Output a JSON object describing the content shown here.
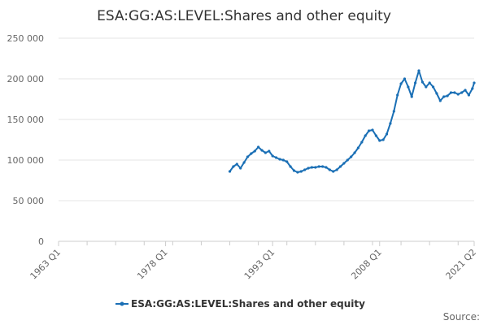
{
  "chart_data": {
    "type": "line",
    "title": "ESA:GG:AS:LEVEL:Shares and other equity",
    "xlabel": "",
    "ylabel": "",
    "ylim": [
      0,
      250000
    ],
    "yticks": [
      0,
      50000,
      100000,
      150000,
      200000,
      250000
    ],
    "ytick_labels": [
      "0",
      "50 000",
      "100 000",
      "150 000",
      "200 000",
      "250 000"
    ],
    "xtick_labels": [
      "1963 Q1",
      "1978 Q1",
      "1993 Q1",
      "2008 Q1",
      "2021 Q2"
    ],
    "grid": true,
    "legend_position": "bottom",
    "series": [
      {
        "name": "ESA:GG:AS:LEVEL:Shares and other equity",
        "color": "#1a6fb5",
        "points": [
          [
            "1987 Q1",
            86000
          ],
          [
            "1987 Q3",
            92000
          ],
          [
            "1988 Q1",
            95000
          ],
          [
            "1988 Q3",
            90000
          ],
          [
            "1989 Q1",
            97000
          ],
          [
            "1989 Q3",
            104000
          ],
          [
            "1990 Q1",
            108000
          ],
          [
            "1990 Q3",
            111000
          ],
          [
            "1991 Q1",
            116000
          ],
          [
            "1991 Q3",
            112000
          ],
          [
            "1992 Q1",
            109000
          ],
          [
            "1992 Q3",
            111000
          ],
          [
            "1993 Q1",
            105000
          ],
          [
            "1993 Q3",
            103000
          ],
          [
            "1994 Q1",
            101000
          ],
          [
            "1994 Q3",
            100000
          ],
          [
            "1995 Q1",
            98000
          ],
          [
            "1995 Q3",
            92000
          ],
          [
            "1996 Q1",
            87000
          ],
          [
            "1996 Q3",
            85000
          ],
          [
            "1997 Q1",
            86000
          ],
          [
            "1997 Q3",
            88000
          ],
          [
            "1998 Q1",
            90000
          ],
          [
            "1998 Q3",
            91000
          ],
          [
            "1999 Q1",
            91000
          ],
          [
            "1999 Q3",
            92000
          ],
          [
            "2000 Q1",
            92000
          ],
          [
            "2000 Q3",
            91000
          ],
          [
            "2001 Q1",
            88000
          ],
          [
            "2001 Q3",
            86000
          ],
          [
            "2002 Q1",
            88000
          ],
          [
            "2002 Q3",
            92000
          ],
          [
            "2003 Q1",
            96000
          ],
          [
            "2003 Q3",
            100000
          ],
          [
            "2004 Q1",
            104000
          ],
          [
            "2004 Q3",
            109000
          ],
          [
            "2005 Q1",
            115000
          ],
          [
            "2005 Q3",
            122000
          ],
          [
            "2006 Q1",
            130000
          ],
          [
            "2006 Q3",
            136000
          ],
          [
            "2007 Q1",
            137000
          ],
          [
            "2007 Q3",
            130000
          ],
          [
            "2008 Q1",
            124000
          ],
          [
            "2008 Q3",
            125000
          ],
          [
            "2009 Q1",
            132000
          ],
          [
            "2009 Q3",
            145000
          ],
          [
            "2010 Q1",
            160000
          ],
          [
            "2010 Q3",
            180000
          ],
          [
            "2011 Q1",
            194000
          ],
          [
            "2011 Q3",
            200000
          ],
          [
            "2012 Q1",
            190000
          ],
          [
            "2012 Q3",
            178000
          ],
          [
            "2013 Q1",
            195000
          ],
          [
            "2013 Q3",
            210000
          ],
          [
            "2014 Q1",
            196000
          ],
          [
            "2014 Q3",
            190000
          ],
          [
            "2015 Q1",
            195000
          ],
          [
            "2015 Q3",
            190000
          ],
          [
            "2016 Q1",
            182000
          ],
          [
            "2016 Q3",
            173000
          ],
          [
            "2017 Q1",
            178000
          ],
          [
            "2017 Q3",
            179000
          ],
          [
            "2018 Q1",
            183000
          ],
          [
            "2018 Q3",
            183000
          ],
          [
            "2019 Q1",
            181000
          ],
          [
            "2019 Q3",
            183000
          ],
          [
            "2020 Q1",
            186000
          ],
          [
            "2020 Q3",
            180000
          ],
          [
            "2021 Q1",
            188000
          ],
          [
            "2021 Q2",
            195000
          ]
        ]
      }
    ]
  },
  "footer": {
    "source_label": "Source:"
  }
}
